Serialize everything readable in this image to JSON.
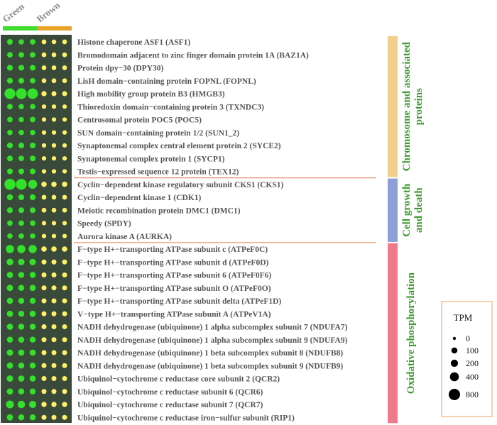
{
  "chart_data": {
    "type": "dot_heatmap",
    "columns": [
      {
        "group": "Green",
        "index": 1
      },
      {
        "group": "Green",
        "index": 2
      },
      {
        "group": "Green",
        "index": 3
      },
      {
        "group": "Brown",
        "index": 1
      },
      {
        "group": "Brown",
        "index": 2
      },
      {
        "group": "Brown",
        "index": 3
      }
    ],
    "column_groups": [
      {
        "label": "Green",
        "color": "#3ddc2f",
        "span": [
          0,
          2
        ]
      },
      {
        "label": "Brown",
        "color": "#e8a42a",
        "span": [
          3,
          5
        ]
      }
    ],
    "dot_colors": {
      "Green": "#33e02a",
      "Brown": "#fff06a"
    },
    "size_legend": {
      "title": "TPM",
      "values": [
        0,
        100,
        200,
        400,
        800
      ]
    },
    "categories": [
      {
        "label": "Chromosome and associated proteins",
        "rows": [
          0,
          10
        ],
        "color": "#f2d08c"
      },
      {
        "label": "Cell growth and death",
        "rows": [
          11,
          15
        ],
        "color": "#8c9fd6"
      },
      {
        "label": "Oxidative phosphorylation",
        "rows": [
          16,
          29
        ],
        "color": "#ee7b8c"
      }
    ],
    "rows": [
      {
        "label": "Histone chaperone ASF1 (ASF1)",
        "values": [
          75,
          60,
          70,
          30,
          25,
          30
        ]
      },
      {
        "label": "Bromodomain adjacent to zinc finger domain protein 1A (BAZ1A)",
        "values": [
          70,
          70,
          70,
          30,
          30,
          30
        ]
      },
      {
        "label": "Protein dpy−30 (DPY30)",
        "values": [
          90,
          80,
          80,
          30,
          30,
          30
        ]
      },
      {
        "label": "LisH domain−containing protein FOPNL (FOPNL)",
        "values": [
          90,
          80,
          70,
          30,
          30,
          30
        ]
      },
      {
        "label": "High mobility group protein B3 (HMGB3)",
        "values": [
          700,
          700,
          650,
          50,
          40,
          40
        ]
      },
      {
        "label": "Thioredoxin domain−containing protein 3 (TXNDC3)",
        "values": [
          70,
          60,
          60,
          20,
          20,
          20
        ]
      },
      {
        "label": "Centrosomal protein POC5 (POC5)",
        "values": [
          70,
          60,
          70,
          20,
          20,
          20
        ]
      },
      {
        "label": "SUN domain−containing protein 1/2 (SUN1_2)",
        "values": [
          60,
          60,
          60,
          20,
          20,
          20
        ]
      },
      {
        "label": "Synaptonemal complex central element protein 2 (SYCE2)",
        "values": [
          90,
          80,
          80,
          20,
          20,
          20
        ]
      },
      {
        "label": "Synaptonemal complex protein 1 (SYCP1)",
        "values": [
          80,
          70,
          80,
          20,
          20,
          20
        ]
      },
      {
        "label": "Testis−expressed sequence 12 protein (TEX12)",
        "values": [
          80,
          80,
          80,
          20,
          20,
          20
        ]
      },
      {
        "label": "Cyclin−dependent kinase regulatory subunit CKS1 (CKS1)",
        "values": [
          750,
          700,
          400,
          60,
          60,
          60
        ]
      },
      {
        "label": "Cyclin−dependent kinase 1 (CDK1)",
        "values": [
          100,
          90,
          90,
          30,
          30,
          30
        ]
      },
      {
        "label": "Meiotic recombination protein DMC1 (DMC1)",
        "values": [
          90,
          80,
          80,
          30,
          30,
          30
        ]
      },
      {
        "label": "Speedy (SPDY)",
        "values": [
          70,
          70,
          70,
          20,
          20,
          20
        ]
      },
      {
        "label": "Aurora kinase A (AURKA)",
        "values": [
          60,
          60,
          60,
          20,
          20,
          20
        ]
      },
      {
        "label": "F−type H+−transporting ATPase subunit c (ATPeF0C)",
        "values": [
          300,
          300,
          300,
          60,
          60,
          60
        ]
      },
      {
        "label": "F−type H+−transporting ATPase subunit d (ATPeF0D)",
        "values": [
          150,
          130,
          130,
          40,
          40,
          40
        ]
      },
      {
        "label": "F−type H+−transporting ATPase subunit 6 (ATPeF0F6)",
        "values": [
          110,
          100,
          100,
          40,
          40,
          40
        ]
      },
      {
        "label": "F−type H+−transporting ATPase subunit O (ATPeF0O)",
        "values": [
          120,
          100,
          110,
          40,
          40,
          40
        ]
      },
      {
        "label": "F−type H+−transporting ATPase subunit delta (ATPeF1D)",
        "values": [
          110,
          100,
          100,
          40,
          40,
          40
        ]
      },
      {
        "label": "V−type H+−transporting ATPase subunit A (ATPeV1A)",
        "values": [
          110,
          100,
          110,
          40,
          40,
          40
        ]
      },
      {
        "label": "NADH dehydrogenase (ubiquinone) 1 alpha subcomplex subunit 7 (NDUFA7)",
        "values": [
          110,
          100,
          100,
          40,
          40,
          40
        ]
      },
      {
        "label": "NADH dehydrogenase (ubiquinone) 1 alpha subcomplex subunit 9 (NDUFA9)",
        "values": [
          100,
          100,
          100,
          40,
          40,
          40
        ]
      },
      {
        "label": "NADH dehydrogenase (ubiquinone) 1 beta subcomplex subunit 8 (NDUFB8)",
        "values": [
          120,
          110,
          110,
          40,
          40,
          40
        ]
      },
      {
        "label": "NADH dehydrogenase (ubiquinone) 1 beta subcomplex subunit 9 (NDUFB9)",
        "values": [
          110,
          100,
          100,
          40,
          40,
          40
        ]
      },
      {
        "label": "Ubiquinol−cytochrome c reductase core subunit 2 (QCR2)",
        "values": [
          130,
          110,
          110,
          40,
          40,
          40
        ]
      },
      {
        "label": "Ubiquinol−cytochrome c reductase subunit 6 (QCR6)",
        "values": [
          110,
          100,
          100,
          40,
          40,
          40
        ]
      },
      {
        "label": "Ubiquinol−cytochrome c reductase subunit 7 (QCR7)",
        "values": [
          260,
          220,
          200,
          50,
          50,
          50
        ]
      },
      {
        "label": "Ubiquinol−cytochrome c reductase iron−sulfur subunit (RIP1)",
        "values": [
          110,
          100,
          100,
          40,
          40,
          40
        ]
      }
    ]
  }
}
